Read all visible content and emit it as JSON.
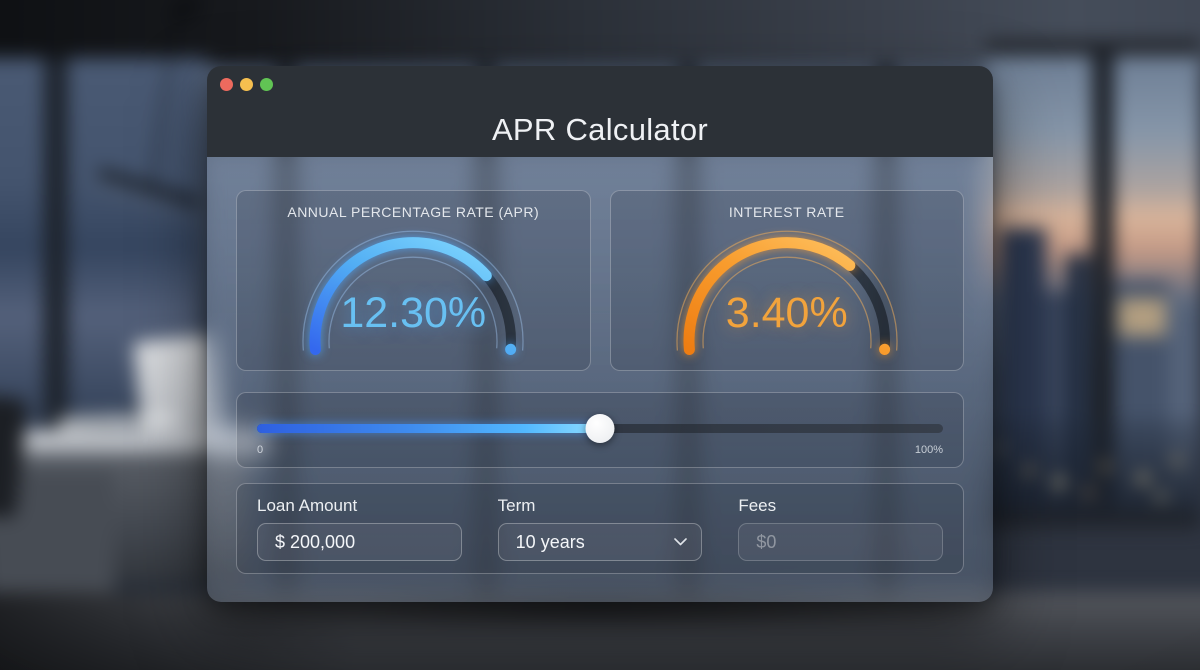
{
  "window": {
    "title": "APR Calculator",
    "controls": {
      "close": "close",
      "minimize": "minimize",
      "maximize": "maximize"
    }
  },
  "gauges": {
    "apr": {
      "label": "ANNUAL PERCENTAGE RATE (APR)",
      "value": "12.30%",
      "percent": 75.5,
      "color": "#68c0f2"
    },
    "interest": {
      "label": "INTEREST RATE",
      "value": "3.40%",
      "percent": 71,
      "color": "#f2a33c"
    }
  },
  "slider": {
    "value_percent": 50,
    "min_label": "0",
    "max_label": "100%"
  },
  "form": {
    "loan_amount": {
      "label": "Loan Amount",
      "value": "$ 200,000"
    },
    "term": {
      "label": "Term",
      "value": "10 years"
    },
    "fees": {
      "label": "Fees",
      "placeholder": "$0"
    }
  },
  "colors": {
    "accent_blue": "#58b6f4",
    "accent_orange": "#f5a43c",
    "titlebar": "#2c3137",
    "traffic_red": "#ed6a5e",
    "traffic_yellow": "#f5bf4f",
    "traffic_green": "#61c454"
  }
}
